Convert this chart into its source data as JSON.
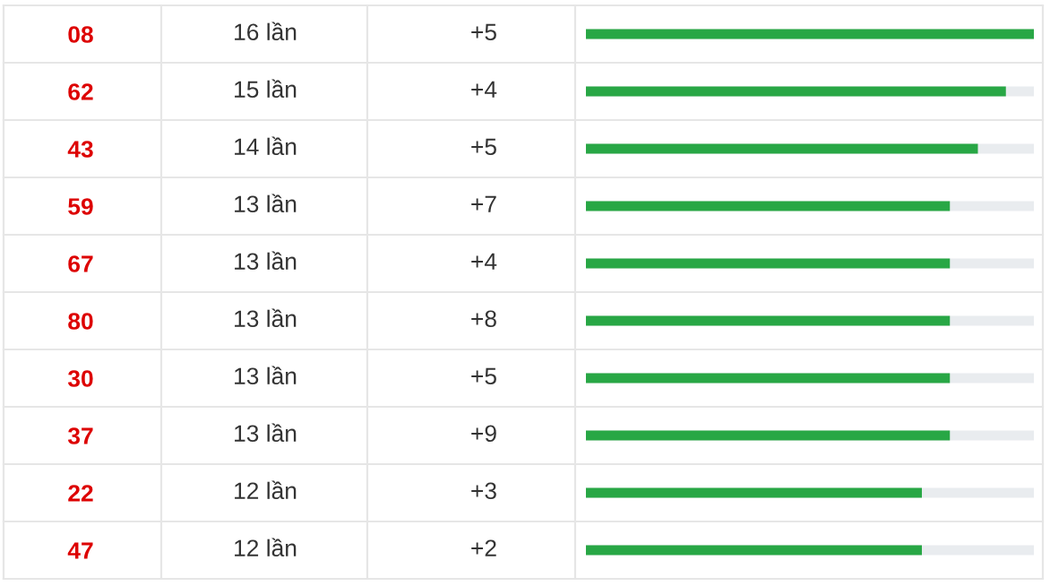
{
  "chart_data": {
    "type": "bar",
    "orientation": "horizontal",
    "categories": [
      "08",
      "62",
      "43",
      "59",
      "67",
      "80",
      "30",
      "37",
      "22",
      "47"
    ],
    "values": [
      16,
      15,
      14,
      13,
      13,
      13,
      13,
      13,
      12,
      12
    ],
    "value_labels": [
      "16 lần",
      "15 lần",
      "14 lần",
      "13 lần",
      "13 lần",
      "13 lần",
      "13 lần",
      "13 lần",
      "12 lần",
      "12 lần"
    ],
    "color": "#28a745",
    "xlim": [
      0,
      16
    ],
    "tick_labels": "y",
    "grid": false,
    "legend": false,
    "annotations": [
      "+5",
      "+4",
      "+5",
      "+7",
      "+4",
      "+8",
      "+5",
      "+9",
      "+3",
      "+2"
    ]
  }
}
